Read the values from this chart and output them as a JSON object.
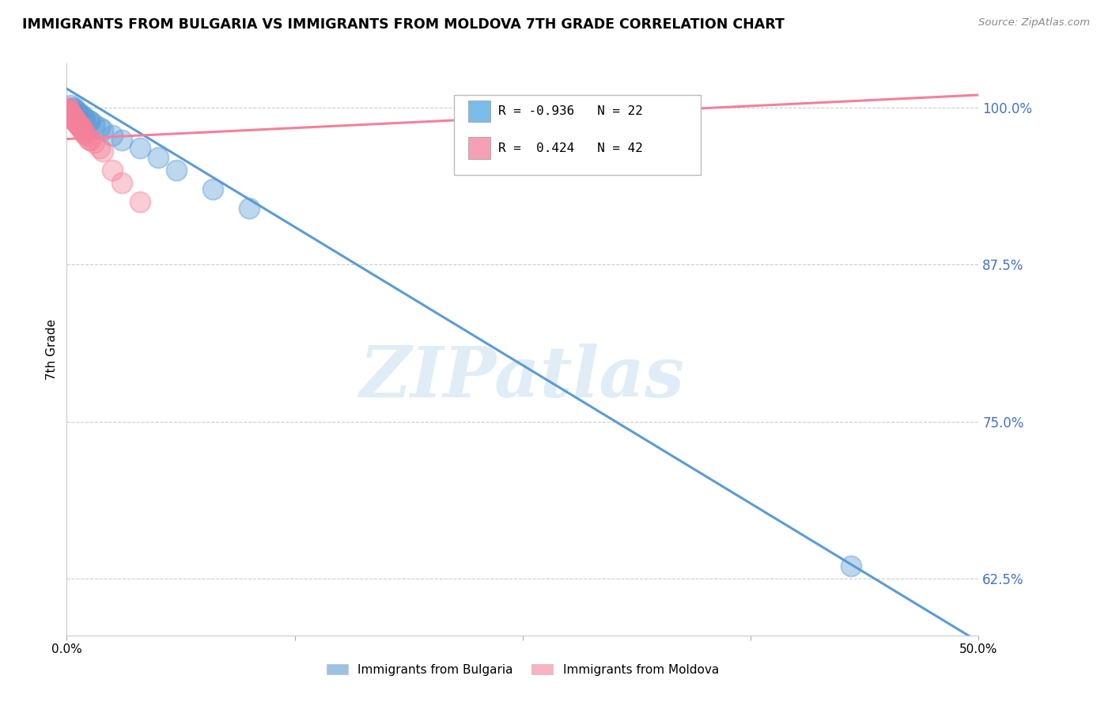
{
  "title": "IMMIGRANTS FROM BULGARIA VS IMMIGRANTS FROM MOLDOVA 7TH GRADE CORRELATION CHART",
  "source": "Source: ZipAtlas.com",
  "ylabel": "7th Grade",
  "xmin": 0.0,
  "xmax": 50.0,
  "ymin": 58.0,
  "ymax": 103.5,
  "yticks": [
    62.5,
    75.0,
    87.5,
    100.0
  ],
  "ytick_labels": [
    "62.5%",
    "75.0%",
    "87.5%",
    "100.0%"
  ],
  "xtick_positions": [
    0.0,
    12.5,
    25.0,
    37.5,
    50.0
  ],
  "xtick_labels": [
    "0.0%",
    "",
    "",
    "",
    "50.0%"
  ],
  "legend_entries": [
    {
      "color": "#7abcea",
      "R": -0.936,
      "N": 22
    },
    {
      "color": "#f4a0b5",
      "R": 0.424,
      "N": 42
    }
  ],
  "legend_labels": [
    "Immigrants from Bulgaria",
    "Immigrants from Moldova"
  ],
  "watermark": "ZIPatlas",
  "background_color": "#ffffff",
  "grid_color": "#cccccc",
  "blue_color": "#5b9bd5",
  "pink_color": "#f48099",
  "blue_scatter": [
    [
      0.2,
      100.2
    ],
    [
      0.4,
      100.0
    ],
    [
      0.5,
      99.8
    ],
    [
      0.6,
      99.6
    ],
    [
      0.8,
      99.4
    ],
    [
      1.0,
      99.2
    ],
    [
      1.2,
      99.0
    ],
    [
      1.5,
      98.7
    ],
    [
      0.3,
      99.9
    ],
    [
      0.7,
      99.5
    ],
    [
      1.8,
      98.4
    ],
    [
      2.0,
      98.2
    ],
    [
      2.5,
      97.8
    ],
    [
      3.0,
      97.4
    ],
    [
      5.0,
      96.0
    ],
    [
      4.0,
      96.8
    ],
    [
      6.0,
      95.0
    ],
    [
      8.0,
      93.5
    ],
    [
      10.0,
      92.0
    ],
    [
      0.9,
      99.3
    ],
    [
      43.0,
      63.5
    ],
    [
      1.3,
      98.9
    ]
  ],
  "pink_scatter": [
    [
      0.05,
      100.0
    ],
    [
      0.1,
      99.8
    ],
    [
      0.15,
      99.7
    ],
    [
      0.2,
      99.5
    ],
    [
      0.25,
      99.5
    ],
    [
      0.3,
      99.3
    ],
    [
      0.35,
      99.3
    ],
    [
      0.4,
      99.2
    ],
    [
      0.45,
      99.0
    ],
    [
      0.5,
      98.9
    ],
    [
      0.55,
      98.8
    ],
    [
      0.6,
      98.7
    ],
    [
      0.65,
      98.6
    ],
    [
      0.7,
      98.5
    ],
    [
      0.75,
      98.4
    ],
    [
      0.8,
      98.3
    ],
    [
      0.85,
      98.2
    ],
    [
      0.9,
      98.1
    ],
    [
      0.95,
      98.0
    ],
    [
      1.0,
      97.9
    ],
    [
      1.1,
      97.7
    ],
    [
      1.2,
      97.5
    ],
    [
      1.3,
      97.4
    ],
    [
      0.12,
      99.7
    ],
    [
      0.22,
      99.4
    ],
    [
      0.32,
      99.1
    ],
    [
      0.42,
      99.0
    ],
    [
      0.52,
      98.9
    ],
    [
      0.08,
      99.8
    ],
    [
      1.5,
      97.2
    ],
    [
      0.18,
      99.6
    ],
    [
      0.28,
      99.3
    ],
    [
      2.0,
      96.5
    ],
    [
      2.5,
      95.0
    ],
    [
      0.38,
      99.1
    ],
    [
      3.0,
      94.0
    ],
    [
      0.48,
      98.9
    ],
    [
      0.58,
      98.8
    ],
    [
      4.0,
      92.5
    ],
    [
      1.8,
      96.8
    ],
    [
      0.82,
      98.5
    ],
    [
      0.72,
      98.5
    ]
  ],
  "blue_line_x": [
    0.0,
    50.0
  ],
  "blue_line_y": [
    101.5,
    57.5
  ],
  "pink_line_x": [
    0.0,
    50.0
  ],
  "pink_line_y": [
    97.5,
    101.0
  ]
}
